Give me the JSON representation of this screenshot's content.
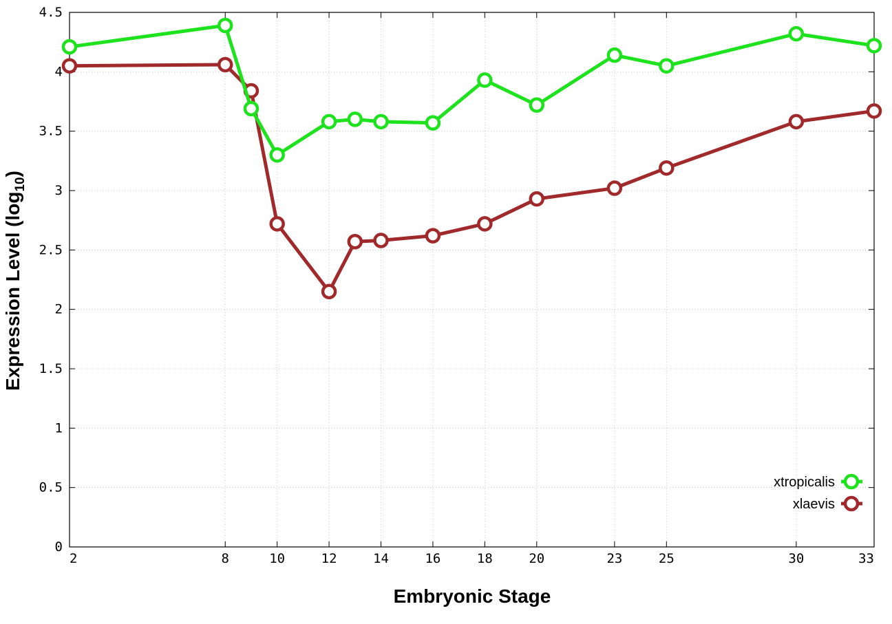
{
  "chart_data": {
    "type": "line",
    "title": "",
    "xlabel": "Embryonic Stage",
    "ylabel": {
      "main": "Expression Level (log",
      "subscript": "10",
      "suffix": ")"
    },
    "x_ticks": [
      2,
      8,
      10,
      12,
      14,
      16,
      18,
      20,
      23,
      25,
      30,
      33
    ],
    "y_ticks": [
      0,
      0.5,
      1,
      1.5,
      2,
      2.5,
      3,
      3.5,
      4,
      4.5
    ],
    "y_tick_labels": [
      "0",
      "0.5",
      "1",
      "1.5",
      "2",
      "2.5",
      "3",
      "3.5",
      "4",
      "4.5"
    ],
    "ylim": [
      0,
      4.5
    ],
    "grid": true,
    "legend_position": "bottom-right",
    "series": [
      {
        "name": "xtropicalis",
        "color": "#1ee21e",
        "points": [
          {
            "x": 2,
            "y": 4.21
          },
          {
            "x": 8,
            "y": 4.39
          },
          {
            "x": 9,
            "y": 3.69
          },
          {
            "x": 10,
            "y": 3.3
          },
          {
            "x": 12,
            "y": 3.58
          },
          {
            "x": 13,
            "y": 3.6
          },
          {
            "x": 14,
            "y": 3.58
          },
          {
            "x": 16,
            "y": 3.57
          },
          {
            "x": 18,
            "y": 3.93
          },
          {
            "x": 20,
            "y": 3.72
          },
          {
            "x": 23,
            "y": 4.14
          },
          {
            "x": 25,
            "y": 4.05
          },
          {
            "x": 30,
            "y": 4.32
          },
          {
            "x": 33,
            "y": 4.22
          }
        ]
      },
      {
        "name": "xlaevis",
        "color": "#a0292b",
        "points": [
          {
            "x": 2,
            "y": 4.05
          },
          {
            "x": 8,
            "y": 4.06
          },
          {
            "x": 9,
            "y": 3.84
          },
          {
            "x": 10,
            "y": 2.72
          },
          {
            "x": 12,
            "y": 2.15
          },
          {
            "x": 13,
            "y": 2.57
          },
          {
            "x": 14,
            "y": 2.58
          },
          {
            "x": 16,
            "y": 2.62
          },
          {
            "x": 18,
            "y": 2.72
          },
          {
            "x": 20,
            "y": 2.93
          },
          {
            "x": 23,
            "y": 3.02
          },
          {
            "x": 25,
            "y": 3.19
          },
          {
            "x": 30,
            "y": 3.58
          },
          {
            "x": 33,
            "y": 3.67
          }
        ]
      }
    ]
  }
}
